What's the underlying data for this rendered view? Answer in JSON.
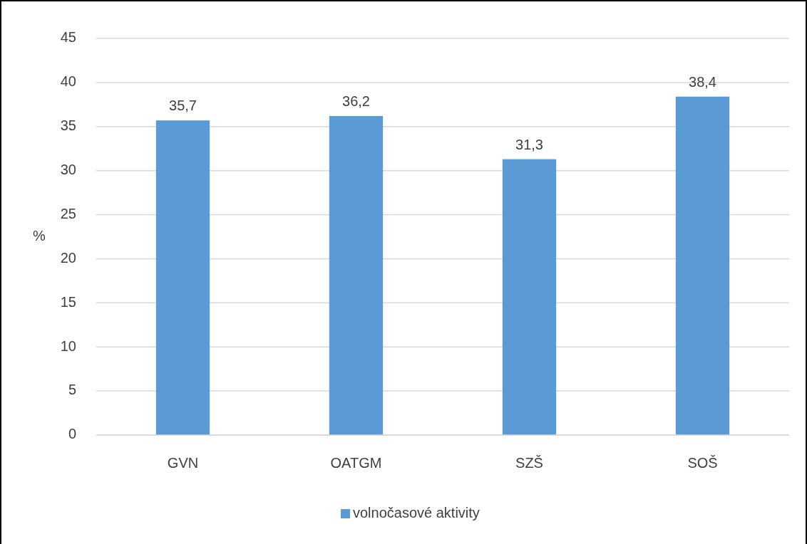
{
  "chart_data": {
    "type": "bar",
    "ylabel": "%",
    "categories": [
      "GVN",
      "OATGM",
      "SZŠ",
      "SOŠ"
    ],
    "series": [
      {
        "name": "volnočasové aktivity",
        "color": "#5b9bd5",
        "values": [
          35.7,
          36.2,
          31.3,
          38.4
        ]
      }
    ],
    "value_labels": [
      "35,7",
      "36,2",
      "31,3",
      "38,4"
    ],
    "ylim": [
      0,
      45
    ],
    "yticks": [
      0,
      5,
      10,
      15,
      20,
      25,
      30,
      35,
      40,
      45
    ],
    "grid": "y",
    "legend": "bottom"
  }
}
